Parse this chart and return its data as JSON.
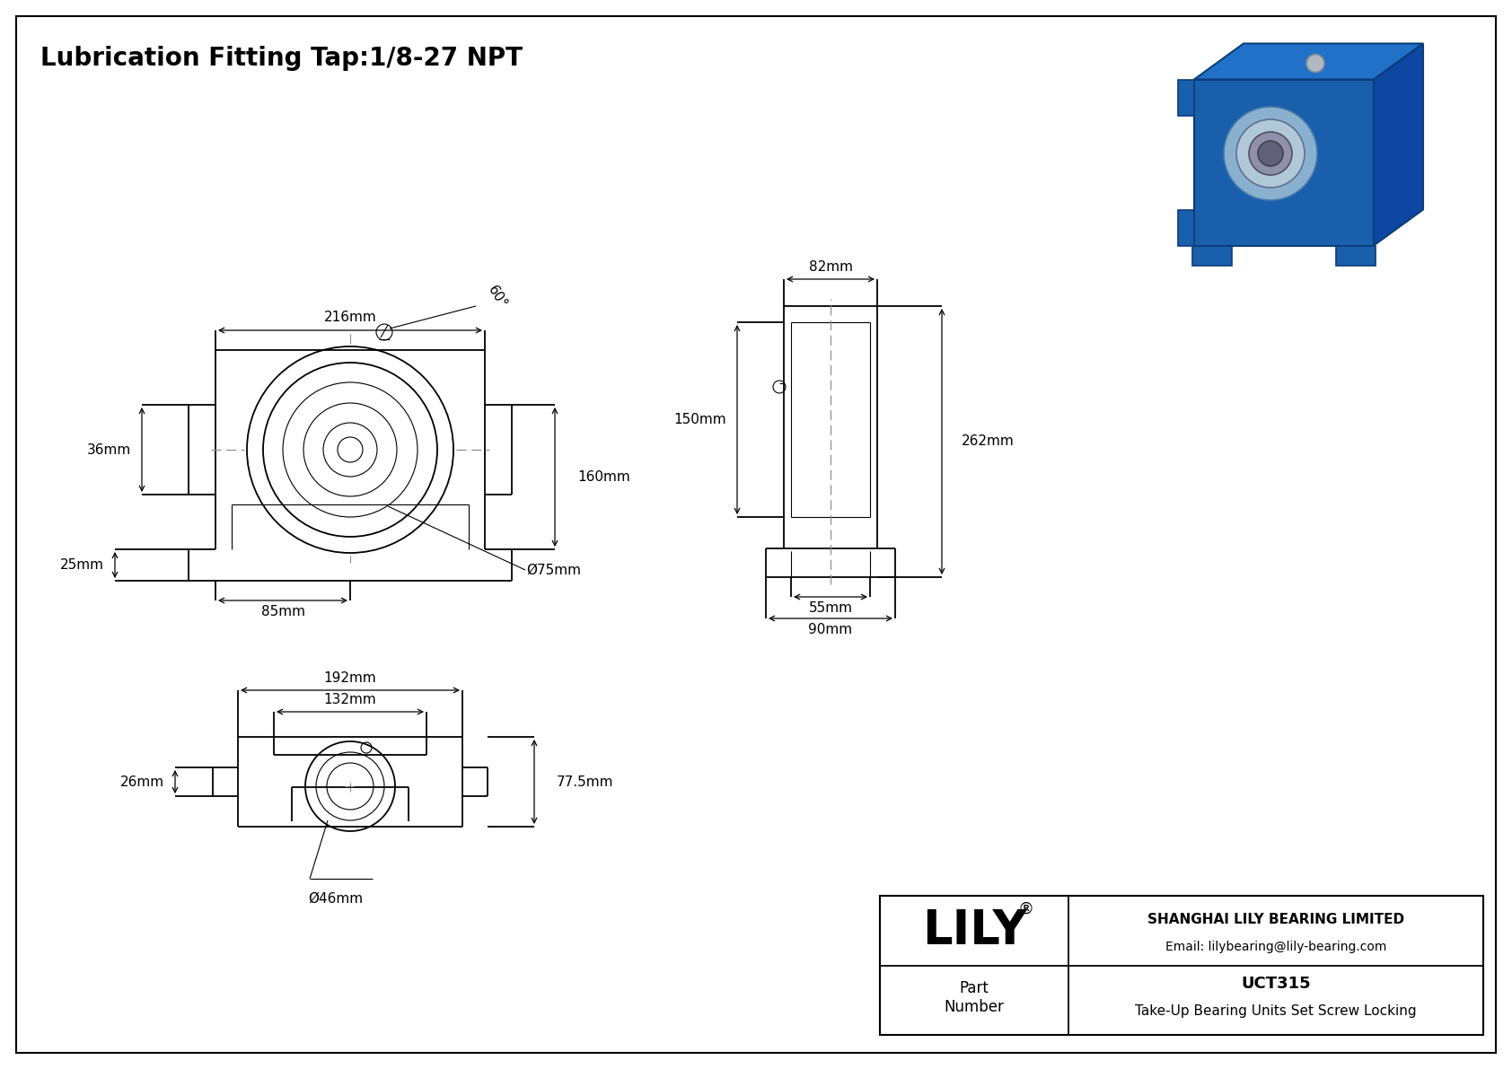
{
  "title": "Lubrication Fitting Tap:1/8-27 NPT",
  "bg_color": "#ffffff",
  "line_color": "#000000",
  "border_color": "#000000",
  "title_fontsize": 20,
  "dim_fontsize": 11,
  "company_name": "LILY",
  "company_sup": "®",
  "company_line1": "SHANGHAI LILY BEARING LIMITED",
  "company_line2": "Email: lilybearing@lily-bearing.com",
  "part_label": "Part\nNumber",
  "part_number": "UCT315",
  "part_desc": "Take-Up Bearing Units Set Screw Locking",
  "dims": {
    "front_width": "216mm",
    "front_height": "160mm",
    "front_flange_height": "36mm",
    "front_bottom_height": "25mm",
    "front_center_offset": "85mm",
    "front_bore": "Ø75mm",
    "front_angle": "60°",
    "side_top_width": "82mm",
    "side_height": "262mm",
    "side_inner_height": "150mm",
    "side_bottom_w1": "55mm",
    "side_bottom_w2": "90mm",
    "bottom_outer_width": "192mm",
    "bottom_inner_width": "132mm",
    "bottom_height": "77.5mm",
    "bottom_left_height": "26mm",
    "bottom_bore": "Ø46mm"
  }
}
